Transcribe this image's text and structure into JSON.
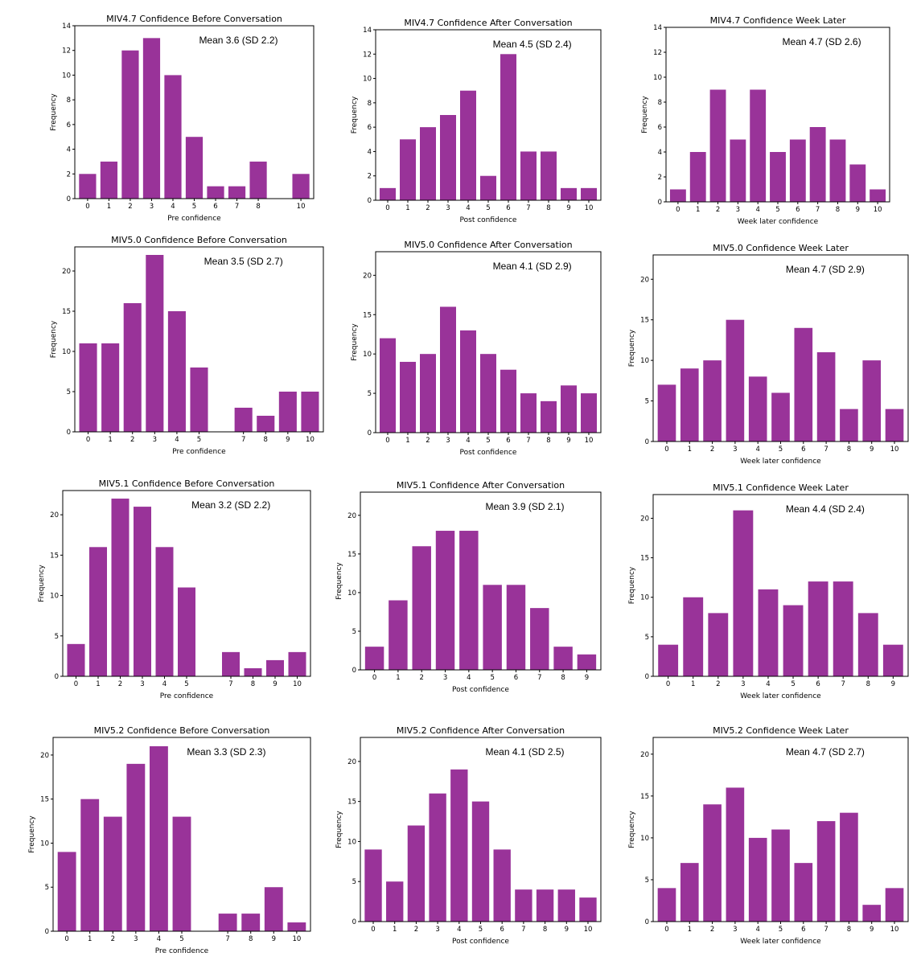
{
  "bar_color": "#993399",
  "chart_data": [
    {
      "type": "bar",
      "title": "MIV4.7 Confidence Before Conversation",
      "annotation": "Mean 3.6 (SD 2.2)",
      "xlabel": "Pre confidence",
      "ylabel": "Frequency",
      "categories": [
        "0",
        "1",
        "2",
        "3",
        "4",
        "5",
        "6",
        "7",
        "8",
        "10"
      ],
      "x": [
        0,
        1,
        2,
        3,
        4,
        5,
        6,
        7,
        8,
        10
      ],
      "values": [
        2,
        3,
        12,
        13,
        10,
        5,
        1,
        1,
        3,
        2
      ],
      "ylim": [
        0,
        14
      ],
      "yticks": [
        0,
        2,
        4,
        6,
        8,
        10,
        12,
        14
      ],
      "xlim": [
        -0.6,
        10.6
      ]
    },
    {
      "type": "bar",
      "title": "MIV4.7 Confidence After Conversation",
      "annotation": "Mean 4.5 (SD 2.4)",
      "xlabel": "Post confidence",
      "ylabel": "Frequency",
      "categories": [
        "0",
        "1",
        "2",
        "3",
        "4",
        "5",
        "6",
        "7",
        "8",
        "9",
        "10"
      ],
      "x": [
        0,
        1,
        2,
        3,
        4,
        5,
        6,
        7,
        8,
        9,
        10
      ],
      "values": [
        1,
        5,
        6,
        7,
        9,
        2,
        12,
        4,
        4,
        1,
        1
      ],
      "ylim": [
        0,
        14
      ],
      "yticks": [
        0,
        2,
        4,
        6,
        8,
        10,
        12,
        14
      ],
      "xlim": [
        -0.6,
        10.6
      ]
    },
    {
      "type": "bar",
      "title": "MIV4.7 Confidence Week Later",
      "annotation": "Mean 4.7 (SD 2.6)",
      "xlabel": "Week later confidence",
      "ylabel": "Frequency",
      "categories": [
        "0",
        "1",
        "2",
        "3",
        "4",
        "5",
        "6",
        "7",
        "8",
        "9",
        "10"
      ],
      "x": [
        0,
        1,
        2,
        3,
        4,
        5,
        6,
        7,
        8,
        9,
        10
      ],
      "values": [
        1,
        4,
        9,
        5,
        9,
        4,
        5,
        6,
        5,
        3,
        1
      ],
      "ylim": [
        0,
        14
      ],
      "yticks": [
        0,
        2,
        4,
        6,
        8,
        10,
        12,
        14
      ],
      "xlim": [
        -0.6,
        10.6
      ]
    },
    {
      "type": "bar",
      "title": "MIV5.0 Confidence Before Conversation",
      "annotation": "Mean 3.5 (SD 2.7)",
      "xlabel": "Pre confidence",
      "ylabel": "Frequency",
      "categories": [
        "0",
        "1",
        "2",
        "3",
        "4",
        "5",
        "7",
        "8",
        "9",
        "10"
      ],
      "x": [
        0,
        1,
        2,
        3,
        4,
        5,
        7,
        8,
        9,
        10
      ],
      "values": [
        11,
        11,
        16,
        22,
        15,
        8,
        3,
        2,
        5,
        5
      ],
      "ylim": [
        0,
        23
      ],
      "yticks": [
        0,
        5,
        10,
        15,
        20
      ],
      "xlim": [
        -0.6,
        10.6
      ]
    },
    {
      "type": "bar",
      "title": "MIV5.0 Confidence After Conversation",
      "annotation": "Mean 4.1 (SD 2.9)",
      "xlabel": "Post confidence",
      "ylabel": "Frequency",
      "categories": [
        "0",
        "1",
        "2",
        "3",
        "4",
        "5",
        "6",
        "7",
        "8",
        "9",
        "10"
      ],
      "x": [
        0,
        1,
        2,
        3,
        4,
        5,
        6,
        7,
        8,
        9,
        10
      ],
      "values": [
        12,
        9,
        10,
        16,
        13,
        10,
        8,
        5,
        4,
        6,
        5
      ],
      "ylim": [
        0,
        23
      ],
      "yticks": [
        0,
        5,
        10,
        15,
        20
      ],
      "xlim": [
        -0.6,
        10.6
      ]
    },
    {
      "type": "bar",
      "title": "MIV5.0 Confidence Week Later",
      "annotation": "Mean 4.7 (SD 2.9)",
      "xlabel": "Week later confidence",
      "ylabel": "Frequency",
      "categories": [
        "0",
        "1",
        "2",
        "3",
        "4",
        "5",
        "6",
        "7",
        "8",
        "9",
        "10"
      ],
      "x": [
        0,
        1,
        2,
        3,
        4,
        5,
        6,
        7,
        8,
        9,
        10
      ],
      "values": [
        7,
        9,
        10,
        15,
        8,
        6,
        14,
        11,
        4,
        10,
        4
      ],
      "ylim": [
        0,
        23
      ],
      "yticks": [
        0,
        5,
        10,
        15,
        20
      ],
      "xlim": [
        -0.6,
        10.6
      ]
    },
    {
      "type": "bar",
      "title": "MIV5.1 Confidence Before Conversation",
      "annotation": "Mean 3.2 (SD 2.2)",
      "xlabel": "Pre confidence",
      "ylabel": "Frequency",
      "categories": [
        "0",
        "1",
        "2",
        "3",
        "4",
        "5",
        "7",
        "8",
        "9",
        "10"
      ],
      "x": [
        0,
        1,
        2,
        3,
        4,
        5,
        7,
        8,
        9,
        10
      ],
      "values": [
        4,
        16,
        22,
        21,
        16,
        11,
        3,
        1,
        2,
        3
      ],
      "ylim": [
        0,
        23
      ],
      "yticks": [
        0,
        5,
        10,
        15,
        20
      ],
      "xlim": [
        -0.6,
        10.6
      ]
    },
    {
      "type": "bar",
      "title": "MIV5.1 Confidence After Conversation",
      "annotation": "Mean 3.9 (SD 2.1)",
      "xlabel": "Post confidence",
      "ylabel": "Frequency",
      "categories": [
        "0",
        "1",
        "2",
        "3",
        "4",
        "5",
        "6",
        "7",
        "8",
        "9"
      ],
      "x": [
        0,
        1,
        2,
        3,
        4,
        5,
        6,
        7,
        8,
        9
      ],
      "values": [
        3,
        9,
        16,
        18,
        18,
        11,
        11,
        8,
        3,
        2
      ],
      "ylim": [
        0,
        23
      ],
      "yticks": [
        0,
        5,
        10,
        15,
        20
      ],
      "xlim": [
        -0.6,
        9.6
      ]
    },
    {
      "type": "bar",
      "title": "MIV5.1 Confidence Week Later",
      "annotation": "Mean 4.4 (SD 2.4)",
      "xlabel": "Week later confidence",
      "ylabel": "Frequency",
      "categories": [
        "0",
        "1",
        "2",
        "3",
        "4",
        "5",
        "6",
        "7",
        "8",
        "9"
      ],
      "x": [
        0,
        1,
        2,
        3,
        4,
        5,
        6,
        7,
        8,
        9
      ],
      "values": [
        4,
        10,
        8,
        21,
        11,
        9,
        12,
        12,
        8,
        4
      ],
      "ylim": [
        0,
        23
      ],
      "yticks": [
        0,
        5,
        10,
        15,
        20
      ],
      "xlim": [
        -0.6,
        9.6
      ]
    },
    {
      "type": "bar",
      "title": "MIV5.2 Confidence Before Conversation",
      "annotation": "Mean 3.3 (SD 2.3)",
      "xlabel": "Pre confidence",
      "ylabel": "Frequency",
      "categories": [
        "0",
        "1",
        "2",
        "3",
        "4",
        "5",
        "7",
        "8",
        "9",
        "10"
      ],
      "x": [
        0,
        1,
        2,
        3,
        4,
        5,
        7,
        8,
        9,
        10
      ],
      "values": [
        9,
        15,
        13,
        19,
        21,
        13,
        2,
        2,
        5,
        1
      ],
      "ylim": [
        0,
        22
      ],
      "yticks": [
        0,
        5,
        10,
        15,
        20
      ],
      "xlim": [
        -0.6,
        10.6
      ]
    },
    {
      "type": "bar",
      "title": "MIV5.2 Confidence After Conversation",
      "annotation": "Mean 4.1 (SD 2.5)",
      "xlabel": "Post confidence",
      "ylabel": "Frequency",
      "categories": [
        "0",
        "1",
        "2",
        "3",
        "4",
        "5",
        "6",
        "7",
        "8",
        "9",
        "10"
      ],
      "x": [
        0,
        1,
        2,
        3,
        4,
        5,
        6,
        7,
        8,
        9,
        10
      ],
      "values": [
        9,
        5,
        12,
        16,
        19,
        15,
        9,
        4,
        4,
        4,
        3
      ],
      "ylim": [
        0,
        23
      ],
      "yticks": [
        0,
        5,
        10,
        15,
        20
      ],
      "xlim": [
        -0.6,
        10.6
      ]
    },
    {
      "type": "bar",
      "title": "MIV5.2 Confidence Week Later",
      "annotation": "Mean 4.7 (SD 2.7)",
      "xlabel": "Week later confidence",
      "ylabel": "Frequency",
      "categories": [
        "0",
        "1",
        "2",
        "3",
        "4",
        "5",
        "6",
        "7",
        "8",
        "9",
        "10"
      ],
      "x": [
        0,
        1,
        2,
        3,
        4,
        5,
        6,
        7,
        8,
        9,
        10
      ],
      "values": [
        4,
        7,
        14,
        16,
        10,
        11,
        7,
        12,
        13,
        2,
        4
      ],
      "ylim": [
        0,
        22
      ],
      "yticks": [
        0,
        5,
        10,
        15,
        20
      ],
      "xlim": [
        -0.6,
        10.6
      ]
    }
  ]
}
